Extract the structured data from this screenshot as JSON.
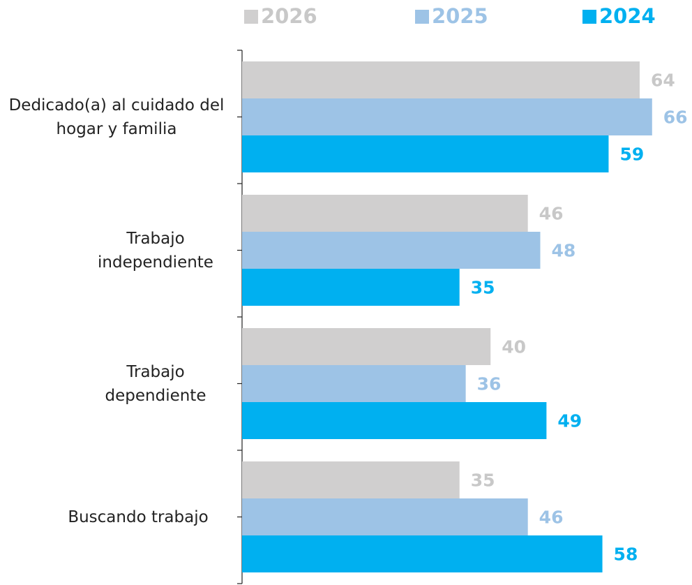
{
  "chart_data": {
    "type": "bar",
    "orientation": "horizontal",
    "categories": [
      "Dedicado(a) al cuidado del hogar y familia",
      "Trabajo independiente",
      "Trabajo dependiente",
      "Buscando trabajo"
    ],
    "series": [
      {
        "name": "2026",
        "color": "#d0cfcf",
        "label_color": "#c8c8c8",
        "values": [
          64,
          46,
          40,
          35
        ]
      },
      {
        "name": "2025",
        "color": "#9dc3e6",
        "label_color": "#9dc3e6",
        "values": [
          66,
          48,
          36,
          46
        ]
      },
      {
        "name": "2024",
        "color": "#00b0f0",
        "label_color": "#00b0f0",
        "values": [
          59,
          35,
          49,
          58
        ]
      }
    ],
    "legend": "top"
  }
}
